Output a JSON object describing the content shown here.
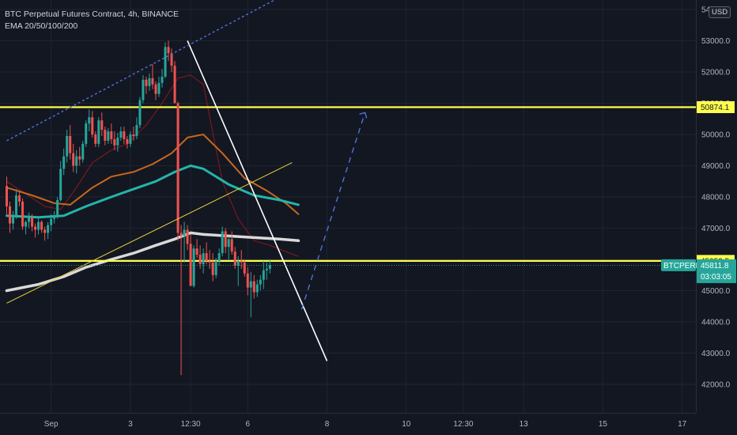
{
  "legend": {
    "title": "BTC Perpetual Futures Contract, 4h, BINANCE",
    "indicator": "EMA 20/50/100/200"
  },
  "currency_button": "USD",
  "colors": {
    "background": "#131722",
    "up": "#26a69a",
    "down": "#ef5350",
    "ema20": "#8b1a1a",
    "ema50": "#c8671c",
    "ema100": "#25b4a9",
    "ema200": "#d9d9d9",
    "horizontal_level": "#ffff4d",
    "price_tag": "#26a69a"
  },
  "chart_data": {
    "type": "candlestick",
    "y_ticks": [
      "42000.0",
      "43000.0",
      "44000.0",
      "45000.0",
      "46000.0",
      "47000.0",
      "48000.0",
      "49000.0",
      "50000.0",
      "51000.0",
      "52000.0",
      "53000.0",
      "54000.0"
    ],
    "ylim": [
      41600,
      54200
    ],
    "x_tick_labels": [
      {
        "label": "Sep",
        "i": 14
      },
      {
        "label": "3",
        "i": 39
      },
      {
        "label": "12:30",
        "i": 58
      },
      {
        "label": "6",
        "i": 76
      },
      {
        "label": "8",
        "i": 101
      },
      {
        "label": "10",
        "i": 126
      },
      {
        "label": "12:30",
        "i": 144
      },
      {
        "label": "13",
        "i": 163
      },
      {
        "label": "15",
        "i": 188
      },
      {
        "label": "17",
        "i": 213
      }
    ],
    "candles": [
      [
        48350,
        48650,
        47450,
        47700
      ],
      [
        47700,
        47850,
        46850,
        47150
      ],
      [
        47150,
        47550,
        46950,
        47400
      ],
      [
        47400,
        48250,
        47300,
        48050
      ],
      [
        48050,
        48200,
        47700,
        47850
      ],
      [
        47850,
        47950,
        46950,
        47050
      ],
      [
        47050,
        47250,
        46800,
        47200
      ],
      [
        47200,
        47500,
        47000,
        47350
      ],
      [
        47350,
        47450,
        46900,
        47050
      ],
      [
        47050,
        47150,
        46700,
        46950
      ],
      [
        46950,
        47350,
        46800,
        47200
      ],
      [
        47200,
        47250,
        46850,
        46950
      ],
      [
        46950,
        47050,
        46600,
        46850
      ],
      [
        46850,
        47200,
        46650,
        47100
      ],
      [
        47100,
        47450,
        46900,
        47300
      ],
      [
        47300,
        47550,
        47150,
        47400
      ],
      [
        47400,
        48000,
        47300,
        47900
      ],
      [
        47900,
        49150,
        47850,
        48900
      ],
      [
        48900,
        49550,
        48700,
        49300
      ],
      [
        49300,
        50150,
        49100,
        49950
      ],
      [
        49950,
        50300,
        49200,
        49400
      ],
      [
        49400,
        49700,
        48800,
        49000
      ],
      [
        49000,
        49500,
        48750,
        49300
      ],
      [
        49300,
        49600,
        49000,
        49200
      ],
      [
        49200,
        49800,
        49100,
        49700
      ],
      [
        49700,
        50450,
        49600,
        50350
      ],
      [
        50350,
        50800,
        50100,
        50550
      ],
      [
        50550,
        50750,
        49900,
        50000
      ],
      [
        50000,
        50100,
        49600,
        49700
      ],
      [
        49700,
        50550,
        49600,
        50450
      ],
      [
        50450,
        50700,
        49950,
        50150
      ],
      [
        50150,
        50250,
        49650,
        49800
      ],
      [
        49800,
        50200,
        49700,
        50100
      ],
      [
        50100,
        50350,
        49700,
        49850
      ],
      [
        49850,
        50100,
        49500,
        49650
      ],
      [
        49650,
        50050,
        49450,
        49900
      ],
      [
        49900,
        50250,
        49800,
        50100
      ],
      [
        50100,
        50250,
        49700,
        49850
      ],
      [
        49850,
        49950,
        49550,
        49700
      ],
      [
        49700,
        50100,
        49600,
        50000
      ],
      [
        50000,
        50250,
        49800,
        49950
      ],
      [
        49950,
        50550,
        49850,
        50300
      ],
      [
        50300,
        51200,
        50200,
        51100
      ],
      [
        51100,
        51900,
        51000,
        51750
      ],
      [
        51750,
        51850,
        51300,
        51550
      ],
      [
        51550,
        51950,
        51400,
        51800
      ],
      [
        51800,
        52250,
        51450,
        51600
      ],
      [
        51600,
        51700,
        51100,
        51300
      ],
      [
        51300,
        51850,
        51200,
        51650
      ],
      [
        51650,
        52100,
        51500,
        51850
      ],
      [
        51850,
        52950,
        51800,
        52800
      ],
      [
        52800,
        53000,
        52350,
        52600
      ],
      [
        52600,
        52750,
        52000,
        52200
      ],
      [
        52200,
        52350,
        51100,
        51000
      ],
      [
        51000,
        51050,
        46600,
        46850
      ],
      [
        46850,
        47100,
        42300,
        46750
      ],
      [
        46750,
        47200,
        45900,
        46950
      ],
      [
        46950,
        47100,
        46300,
        46500
      ],
      [
        46500,
        46800,
        45200,
        45150
      ],
      [
        45150,
        46450,
        45100,
        46350
      ],
      [
        46350,
        46650,
        46050,
        46150
      ],
      [
        46150,
        46450,
        45700,
        45850
      ],
      [
        45850,
        46350,
        45550,
        46200
      ],
      [
        46200,
        46550,
        45850,
        45950
      ],
      [
        45950,
        46300,
        45700,
        45900
      ],
      [
        45900,
        46200,
        45300,
        45500
      ],
      [
        45500,
        46050,
        45400,
        45950
      ],
      [
        45950,
        46350,
        45800,
        46200
      ],
      [
        46200,
        47050,
        46100,
        46900
      ],
      [
        46900,
        47000,
        46200,
        46400
      ],
      [
        46400,
        46750,
        46000,
        46650
      ],
      [
        46650,
        46900,
        46150,
        46250
      ],
      [
        46250,
        46400,
        45700,
        45800
      ],
      [
        45800,
        46100,
        45150,
        45950
      ],
      [
        45950,
        46300,
        45700,
        45900
      ],
      [
        45900,
        46000,
        45450,
        45550
      ],
      [
        45550,
        45750,
        44850,
        45100
      ],
      [
        45100,
        45600,
        44150,
        45300
      ],
      [
        45300,
        45500,
        44750,
        44950
      ],
      [
        44950,
        45350,
        44800,
        45200
      ],
      [
        45200,
        45500,
        45000,
        45350
      ],
      [
        45350,
        45950,
        45050,
        45650
      ],
      [
        45650,
        45900,
        45350,
        45700
      ],
      [
        45700,
        46000,
        45550,
        45812
      ]
    ],
    "ema_lines": [
      {
        "name": "EMA 20",
        "points": [
          [
            0,
            48500
          ],
          [
            6,
            48100
          ],
          [
            12,
            47700
          ],
          [
            17,
            47600
          ],
          [
            22,
            48300
          ],
          [
            27,
            49100
          ],
          [
            33,
            49500
          ],
          [
            38,
            49700
          ],
          [
            44,
            50300
          ],
          [
            49,
            51000
          ],
          [
            54,
            51800
          ],
          [
            58,
            51900
          ],
          [
            62,
            51600
          ],
          [
            68,
            48500
          ],
          [
            73,
            47300
          ],
          [
            78,
            46600
          ],
          [
            83,
            46450
          ],
          [
            88,
            46250
          ],
          [
            92,
            46100
          ]
        ]
      },
      {
        "name": "EMA 50",
        "points": [
          [
            0,
            48300
          ],
          [
            8,
            48050
          ],
          [
            15,
            47800
          ],
          [
            20,
            47750
          ],
          [
            27,
            48300
          ],
          [
            33,
            48650
          ],
          [
            40,
            48800
          ],
          [
            46,
            49050
          ],
          [
            52,
            49400
          ],
          [
            57,
            49900
          ],
          [
            62,
            50000
          ],
          [
            68,
            49400
          ],
          [
            75,
            48600
          ],
          [
            82,
            48200
          ],
          [
            88,
            47800
          ],
          [
            92,
            47450
          ]
        ]
      },
      {
        "name": "EMA 100",
        "points": [
          [
            0,
            47400
          ],
          [
            10,
            47350
          ],
          [
            18,
            47400
          ],
          [
            25,
            47700
          ],
          [
            33,
            48000
          ],
          [
            40,
            48250
          ],
          [
            47,
            48500
          ],
          [
            53,
            48800
          ],
          [
            58,
            49000
          ],
          [
            62,
            48900
          ],
          [
            70,
            48400
          ],
          [
            78,
            48050
          ],
          [
            86,
            47900
          ],
          [
            92,
            47750
          ]
        ]
      },
      {
        "name": "EMA 200",
        "points": [
          [
            0,
            45000
          ],
          [
            10,
            45200
          ],
          [
            18,
            45450
          ],
          [
            25,
            45750
          ],
          [
            33,
            46000
          ],
          [
            40,
            46200
          ],
          [
            47,
            46450
          ],
          [
            53,
            46650
          ],
          [
            58,
            46850
          ],
          [
            62,
            46800
          ],
          [
            70,
            46750
          ],
          [
            78,
            46700
          ],
          [
            86,
            46650
          ],
          [
            92,
            46600
          ]
        ]
      }
    ],
    "horizontal_levels": [
      {
        "value": 50874.1,
        "label": "50874.1"
      },
      {
        "value": 45952.5,
        "label": "45952.5"
      }
    ],
    "trend_lines": [
      {
        "style": "solid",
        "color": "#ffffff",
        "from": [
          57,
          53000
        ],
        "to": [
          101,
          42750
        ]
      },
      {
        "style": "solid",
        "color": "#e6d33c",
        "from": [
          0,
          44600
        ],
        "to": [
          90,
          49100
        ]
      },
      {
        "style": "dashed",
        "color": "#4f74d6",
        "from": [
          0,
          49800
        ],
        "to": [
          90,
          54600
        ]
      },
      {
        "style": "dashed",
        "color": "#4f74d6",
        "from": [
          93,
          44400
        ],
        "to": [
          113,
          50700
        ]
      }
    ],
    "last_price": {
      "symbol": "BTCPERP",
      "price": "45811.8",
      "countdown": "03:03:05",
      "value": 45811.8
    }
  }
}
